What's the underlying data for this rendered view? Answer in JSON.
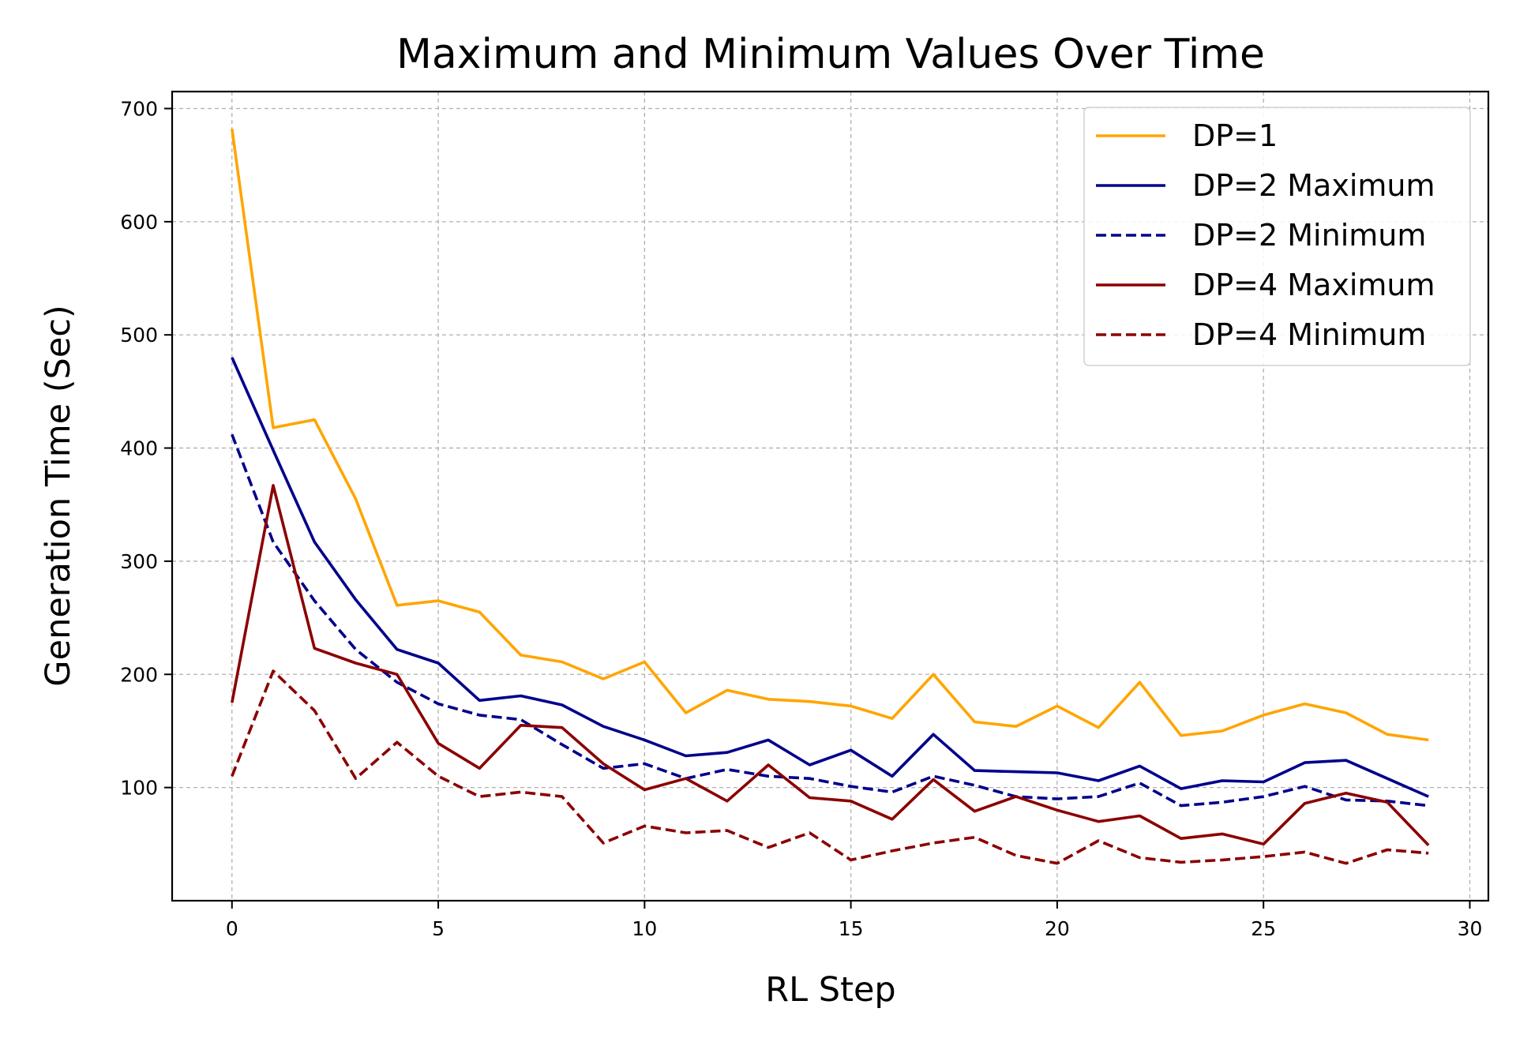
{
  "chart_data": {
    "type": "line",
    "title": "Maximum and Minimum Values Over Time",
    "xlabel": "RL Step",
    "ylabel": "Generation Time (Sec)",
    "xlim": [
      -1.45,
      30.45
    ],
    "ylim": [
      0,
      715
    ],
    "xticks": [
      0,
      5,
      10,
      15,
      20,
      25,
      30
    ],
    "yticks": [
      100,
      200,
      300,
      400,
      500,
      600,
      700
    ],
    "grid": true,
    "legend_position": "upper right",
    "x": [
      0,
      1,
      2,
      3,
      4,
      5,
      6,
      7,
      8,
      9,
      10,
      11,
      12,
      13,
      14,
      15,
      16,
      17,
      18,
      19,
      20,
      21,
      22,
      23,
      24,
      25,
      26,
      27,
      28,
      29
    ],
    "series": [
      {
        "name": "DP=1",
        "color": "#FFA500",
        "style": "solid",
        "values": [
          682,
          418,
          425,
          355,
          261,
          265,
          255,
          217,
          211,
          196,
          211,
          166,
          186,
          178,
          176,
          172,
          161,
          200,
          158,
          154,
          172,
          153,
          193,
          146,
          150,
          164,
          174,
          166,
          147,
          142
        ]
      },
      {
        "name": "DP=2 Maximum",
        "color": "#00008B",
        "style": "solid",
        "values": [
          480,
          398,
          317,
          266,
          222,
          210,
          177,
          181,
          173,
          154,
          142,
          128,
          131,
          142,
          120,
          133,
          110,
          147,
          115,
          114,
          113,
          106,
          119,
          99,
          106,
          105,
          122,
          124,
          108,
          92
        ]
      },
      {
        "name": "DP=2 Minimum",
        "color": "#00008B",
        "style": "dashed",
        "values": [
          412,
          317,
          265,
          222,
          193,
          174,
          164,
          160,
          138,
          117,
          121,
          108,
          116,
          110,
          108,
          101,
          96,
          110,
          102,
          92,
          90,
          92,
          104,
          84,
          87,
          92,
          101,
          89,
          88,
          84
        ]
      },
      {
        "name": "DP=4 Maximum",
        "color": "#8B0000",
        "style": "solid",
        "values": [
          175,
          367,
          223,
          210,
          200,
          139,
          117,
          155,
          153,
          121,
          98,
          108,
          88,
          120,
          91,
          88,
          72,
          107,
          79,
          92,
          80,
          70,
          75,
          55,
          59,
          50,
          86,
          95,
          87,
          49
        ]
      },
      {
        "name": "DP=4 Minimum",
        "color": "#8B0000",
        "style": "dashed",
        "values": [
          110,
          203,
          168,
          108,
          140,
          110,
          92,
          96,
          92,
          51,
          66,
          60,
          62,
          47,
          60,
          36,
          44,
          51,
          56,
          40,
          33,
          53,
          38,
          34,
          36,
          39,
          43,
          33,
          45,
          42
        ]
      }
    ]
  }
}
